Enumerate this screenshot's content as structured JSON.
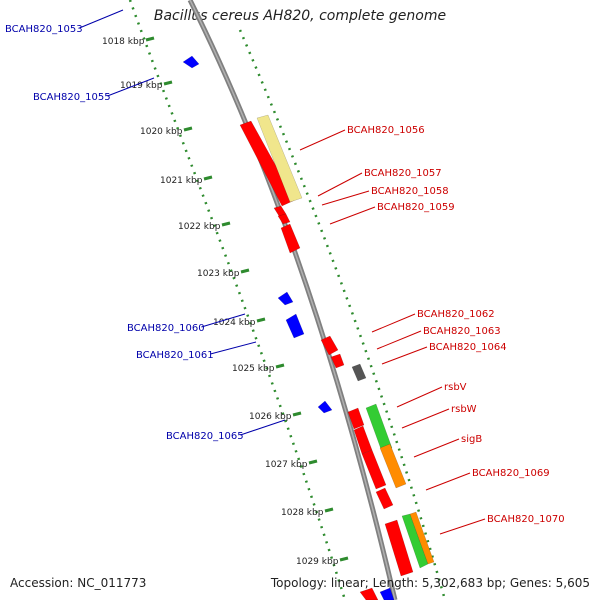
{
  "title": "Bacillus cereus AH820, complete genome",
  "footer": {
    "accession": "Accession: NC_011773",
    "summary": "Topology: linear; Length: 5,302,683 bp; Genes: 5,605"
  },
  "colors": {
    "forward_label": "#cc0000",
    "reverse_label": "#0000aa",
    "kbp_ticks": "#2e8b2e",
    "genome_line": "#888888",
    "cds_forward": "#ff0000",
    "cds_reverse": "#0000ff",
    "cog_yellow": "#f0e68c",
    "cog_green": "#33cc33",
    "cog_orange": "#ff8c00",
    "pseudo_gray": "#555555"
  },
  "kbp_ticks": [
    "1018 kbp",
    "1019 kbp",
    "1020 kbp",
    "1021 kbp",
    "1022 kbp",
    "1023 kbp",
    "1024 kbp",
    "1025 kbp",
    "1026 kbp",
    "1027 kbp",
    "1028 kbp",
    "1029 kbp"
  ],
  "forward_labels": [
    "BCAH820_1056",
    "BCAH820_1057",
    "BCAH820_1058",
    "BCAH820_1059",
    "BCAH820_1062",
    "BCAH820_1063",
    "BCAH820_1064",
    "rsbV",
    "rsbW",
    "sigB",
    "BCAH820_1069",
    "BCAH820_1070"
  ],
  "reverse_labels": [
    "BCAH820_1053",
    "BCAH820_1055",
    "BCAH820_1060",
    "BCAH820_1061",
    "BCAH820_1065"
  ]
}
